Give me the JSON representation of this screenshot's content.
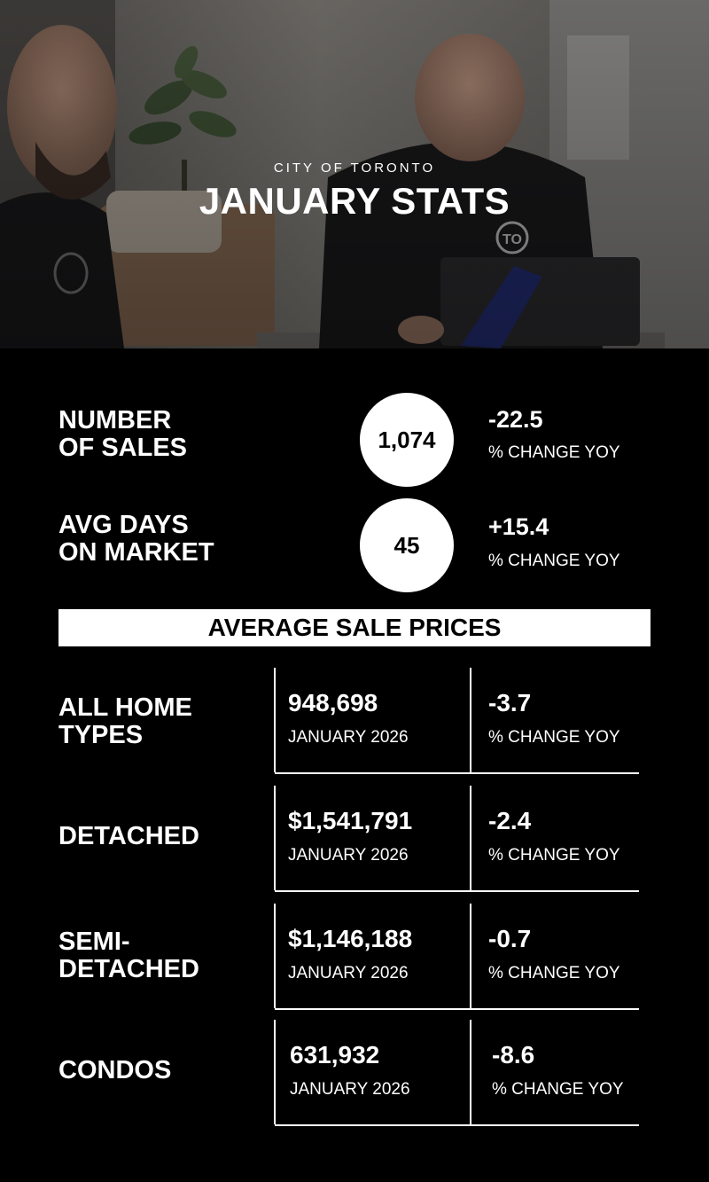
{
  "header": {
    "subtitle": "CITY OF TORONTO",
    "title": "JANUARY STATS",
    "photo": "two-men-at-laptop-photo",
    "hoodie_logo_text": "TO"
  },
  "stats": [
    {
      "label": "NUMBER\nOF SALES",
      "value": "1,074",
      "change": "-22.5",
      "change_caption": "% CHANGE YOY"
    },
    {
      "label": "AVG DAYS\nON MARKET",
      "value": "45",
      "change": "+15.4",
      "change_caption": "% CHANGE YOY"
    }
  ],
  "section_title": "AVERAGE SALE PRICES",
  "prices": [
    {
      "type": "ALL HOME\nTYPES",
      "price": "948,698",
      "period": "JANUARY 2026",
      "change": "-3.7",
      "change_caption": "% CHANGE YOY"
    },
    {
      "type": "DETACHED",
      "price": "$1,541,791",
      "period": "JANUARY 2026",
      "change": "-2.4",
      "change_caption": "% CHANGE YOY"
    },
    {
      "type": "SEMI-\nDETACHED",
      "price": "$1,146,188",
      "period": "JANUARY 2026",
      "change": "-0.7",
      "change_caption": "% CHANGE YOY"
    },
    {
      "type": "CONDOS",
      "price": "631,932",
      "period": "JANUARY 2026",
      "change": "-8.6",
      "change_caption": "% CHANGE YOY"
    }
  ],
  "colors": {
    "background": "#000000",
    "foreground": "#ffffff"
  }
}
